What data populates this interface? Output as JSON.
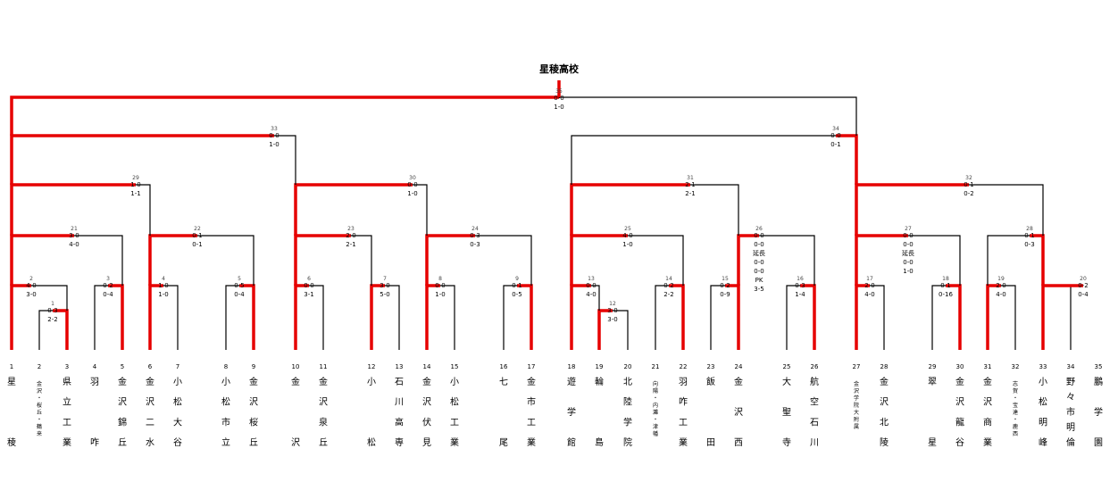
{
  "title": "星稜高校",
  "teams": [
    {
      "no": "1",
      "name": "星稜"
    },
    {
      "no": "2",
      "name": "金沢・桜丘・鶴来",
      "small": true
    },
    {
      "no": "3",
      "name": "県立工業"
    },
    {
      "no": "4",
      "name": "羽咋"
    },
    {
      "no": "5",
      "name": "金沢錦丘"
    },
    {
      "no": "6",
      "name": "金沢二水"
    },
    {
      "no": "7",
      "name": "小松大谷"
    },
    {
      "no": "8",
      "name": "小松市立"
    },
    {
      "no": "9",
      "name": "金沢桜丘"
    },
    {
      "no": "10",
      "name": "金沢"
    },
    {
      "no": "11",
      "name": "金沢泉丘"
    },
    {
      "no": "12",
      "name": "小松"
    },
    {
      "no": "13",
      "name": "石川高専"
    },
    {
      "no": "14",
      "name": "金沢伏見"
    },
    {
      "no": "15",
      "name": "小松工業"
    },
    {
      "no": "16",
      "name": "七尾"
    },
    {
      "no": "17",
      "name": "金市工業"
    },
    {
      "no": "18",
      "name": "遊学館"
    },
    {
      "no": "19",
      "name": "輪島"
    },
    {
      "no": "20",
      "name": "北陸学院"
    },
    {
      "no": "21",
      "name": "向陽・内灘・津幡",
      "small": true
    },
    {
      "no": "22",
      "name": "羽咋工業"
    },
    {
      "no": "23",
      "name": "飯田"
    },
    {
      "no": "24",
      "name": "金沢西"
    },
    {
      "no": "25",
      "name": "大聖寺"
    },
    {
      "no": "26",
      "name": "航空石川"
    },
    {
      "no": "27",
      "name": "金沢学院大附属",
      "small": true
    },
    {
      "no": "28",
      "name": "金沢北陵"
    },
    {
      "no": "29",
      "name": "翠星"
    },
    {
      "no": "30",
      "name": "金沢龍谷"
    },
    {
      "no": "31",
      "name": "金沢商業"
    },
    {
      "no": "32",
      "name": "志賀・宝達・鹿西",
      "small": true
    },
    {
      "no": "33",
      "name": "小松明峰"
    },
    {
      "no": "34",
      "name": "野々市明倫"
    },
    {
      "no": "35",
      "name": "鵬学園"
    }
  ],
  "matches": [
    {
      "id": "m1",
      "no": "1",
      "scores": [
        "0-3",
        "2-2"
      ]
    },
    {
      "id": "m2",
      "no": "12",
      "scores": [
        "3-0",
        "3-0"
      ]
    },
    {
      "id": "r1_1",
      "no": "2",
      "scores": [
        "4-0",
        "3-0"
      ]
    },
    {
      "id": "r1_2",
      "no": "3",
      "scores": [
        "0-2",
        "0-4"
      ]
    },
    {
      "id": "r1_3",
      "no": "4",
      "scores": [
        "1-0",
        "1-0"
      ]
    },
    {
      "id": "r1_4",
      "no": "5",
      "scores": [
        "0-5",
        "0-4"
      ]
    },
    {
      "id": "r1_5",
      "no": "6",
      "scores": [
        "0-0",
        "3-1"
      ]
    },
    {
      "id": "r1_6",
      "no": "7",
      "scores": [
        "3-0",
        "5-0"
      ]
    },
    {
      "id": "r1_7",
      "no": "8",
      "scores": [
        "0-0",
        "1-0"
      ]
    },
    {
      "id": "r1_8",
      "no": "9",
      "scores": [
        "0-1",
        "0-5"
      ]
    },
    {
      "id": "r1_9",
      "no": "13",
      "scores": [
        "0-0",
        "4-0"
      ]
    },
    {
      "id": "r1_10",
      "no": "14",
      "scores": [
        "0-2",
        "2-2"
      ]
    },
    {
      "id": "r1_11",
      "no": "15",
      "scores": [
        "0-2",
        "0-9"
      ]
    },
    {
      "id": "r1_12",
      "no": "16",
      "scores": [
        "0-3",
        "1-4"
      ]
    },
    {
      "id": "r1_13",
      "no": "17",
      "scores": [
        "2-0",
        "4-0"
      ]
    },
    {
      "id": "r1_14",
      "no": "18",
      "scores": [
        "0-1",
        "0-16"
      ]
    },
    {
      "id": "r1_15",
      "no": "19",
      "scores": [
        "2-0",
        "4-0"
      ]
    },
    {
      "id": "r1_16",
      "no": "20",
      "scores": [
        "0-2",
        "0-4"
      ]
    },
    {
      "id": "r2_1",
      "no": "21",
      "scores": [
        "3-0",
        "4-0"
      ]
    },
    {
      "id": "r2_2",
      "no": "22",
      "scores": [
        "0-1",
        "0-1"
      ]
    },
    {
      "id": "r2_3",
      "no": "23",
      "scores": [
        "2-0",
        "2-1"
      ]
    },
    {
      "id": "r2_4",
      "no": "24",
      "scores": [
        "0-3",
        "0-3"
      ]
    },
    {
      "id": "r2_5",
      "no": "25",
      "scores": [
        "4-0",
        "1-0"
      ]
    },
    {
      "id": "r2_6",
      "no": "26",
      "scores": [
        "0-0",
        "0-0",
        "延長",
        "0-0",
        "0-0",
        "PK",
        "3-5"
      ]
    },
    {
      "id": "r2_7",
      "no": "27",
      "scores": [
        "0-0",
        "0-0",
        "延長",
        "0-0",
        "1-0"
      ]
    },
    {
      "id": "r2_8",
      "no": "28",
      "scores": [
        "0-1",
        "0-3"
      ]
    },
    {
      "id": "qf_1",
      "no": "29",
      "scores": [
        "1-0",
        "1-1"
      ]
    },
    {
      "id": "qf_2",
      "no": "30",
      "scores": [
        "0-0",
        "1-0"
      ]
    },
    {
      "id": "qf_3",
      "no": "31",
      "scores": [
        "2-1",
        "2-1"
      ]
    },
    {
      "id": "qf_4",
      "no": "32",
      "scores": [
        "0-1",
        "0-2"
      ]
    },
    {
      "id": "sf_1",
      "no": "33",
      "scores": [
        "0-0",
        "1-0"
      ]
    },
    {
      "id": "sf_2",
      "no": "34",
      "scores": [
        "0-0",
        "0-1"
      ]
    },
    {
      "id": "final",
      "no": "35",
      "scores": [
        "0-0",
        "1-0"
      ]
    }
  ]
}
